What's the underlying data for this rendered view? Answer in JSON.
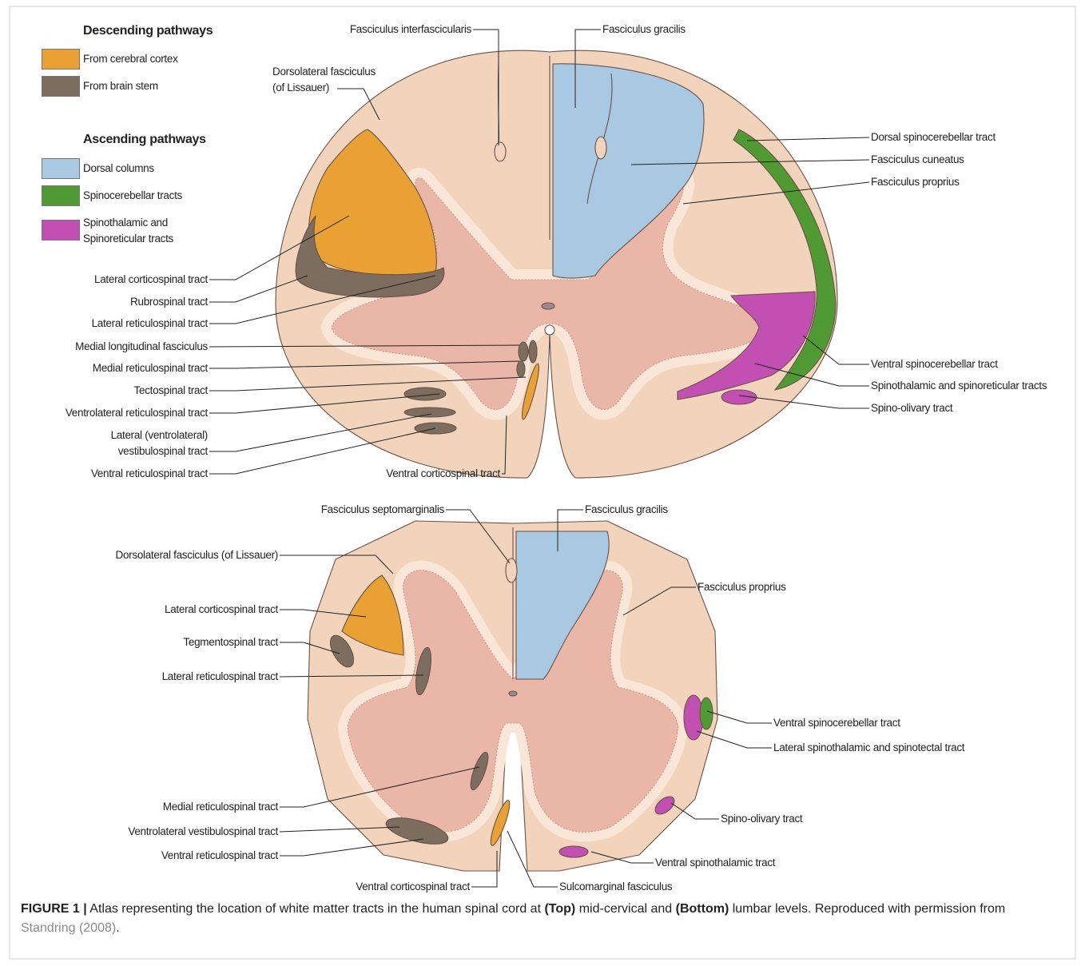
{
  "legend": {
    "descending": {
      "title": "Descending pathways",
      "items": [
        "From cerebral cortex",
        "From brain stem"
      ]
    },
    "ascending": {
      "title": "Ascending pathways",
      "items": [
        "Dorsal columns",
        "Spinocerebellar tracts",
        "Spinothalamic and\nSpinoreticular tracts"
      ]
    }
  },
  "top_section": {
    "labels": [
      "Fasciculus interfascicularis",
      "Fasciculus gracilis",
      "Dorsolateral fasciculus\n(of Lissauer)",
      "Dorsal spinocerebellar tract",
      "Fasciculus cuneatus",
      "Fasciculus proprius",
      "Lateral corticospinal tract",
      "Rubrospinal tract",
      "Lateral reticulospinal tract",
      "Medial longitudinal fasciculus",
      "Medial reticulospinal tract",
      "Tectospinal tract",
      "Ventrolateral reticulospinal tract",
      "Lateral (ventrolateral)\nvestibulospinal tract",
      "Ventral reticulospinal tract",
      "Ventral spinocerebellar tract",
      "Spinothalamic and spinoreticular tracts",
      "Spino-olivary tract",
      "Ventral corticospinal tract"
    ]
  },
  "bottom_section": {
    "labels": [
      "Fasciculus septomarginalis",
      "Fasciculus gracilis",
      "Dorsolateral fasciculus (of Lissauer)",
      "Fasciculus proprius",
      "Lateral corticospinal tract",
      "Tegmentospinal tract",
      "Lateral reticulospinal tract",
      "Ventral spinocerebellar tract",
      "Lateral spinothalamic and spinotectal tract",
      "Medial reticulospinal tract",
      "Spino-olivary tract",
      "Ventrolateral vestibulospinal tract",
      "Ventral reticulospinal tract",
      "Ventral spinothalamic tract",
      "Ventral corticospinal tract",
      "Sulcomarginal fasciculus"
    ]
  },
  "caption": {
    "parts": [
      "FIGURE 1 |",
      " Atlas representing the location of white matter tracts in the human spinal cord at ",
      "(Top)",
      " mid-cervical and ",
      "(Bottom)",
      " lumbar levels. Reproduced with permission from ",
      "Standring (2008)",
      "."
    ]
  }
}
